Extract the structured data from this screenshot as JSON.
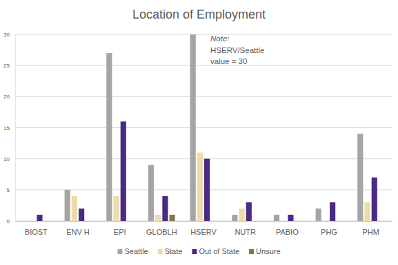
{
  "chart_data": {
    "type": "bar",
    "title": "Location of Employment",
    "categories": [
      "BIOST",
      "ENV H",
      "EPI",
      "GLOBLH",
      "HSERV",
      "NUTR",
      "PABIO",
      "PHG",
      "PHM"
    ],
    "series": [
      {
        "name": "Seattle",
        "color": "#a5a5a5",
        "values": [
          0,
          5,
          27,
          9,
          30,
          1,
          1,
          2,
          14
        ]
      },
      {
        "name": "State",
        "color": "#eedba7",
        "values": [
          0,
          4,
          4,
          1,
          11,
          2,
          0,
          0,
          3
        ]
      },
      {
        "name": "Out of State",
        "color": "#4b2a85",
        "values": [
          1,
          2,
          16,
          4,
          10,
          3,
          1,
          3,
          7
        ]
      },
      {
        "name": "Unsure",
        "color": "#85754e",
        "values": [
          0,
          0,
          0,
          1,
          0,
          0,
          0,
          0,
          0
        ]
      }
    ],
    "ylim": [
      0,
      30
    ],
    "yticks": [
      0,
      5,
      10,
      15,
      20,
      25,
      30
    ],
    "grid": true,
    "legend": "bottom",
    "annotations": [
      "Note:",
      "HSERV/Seattle",
      "value = 30"
    ]
  }
}
